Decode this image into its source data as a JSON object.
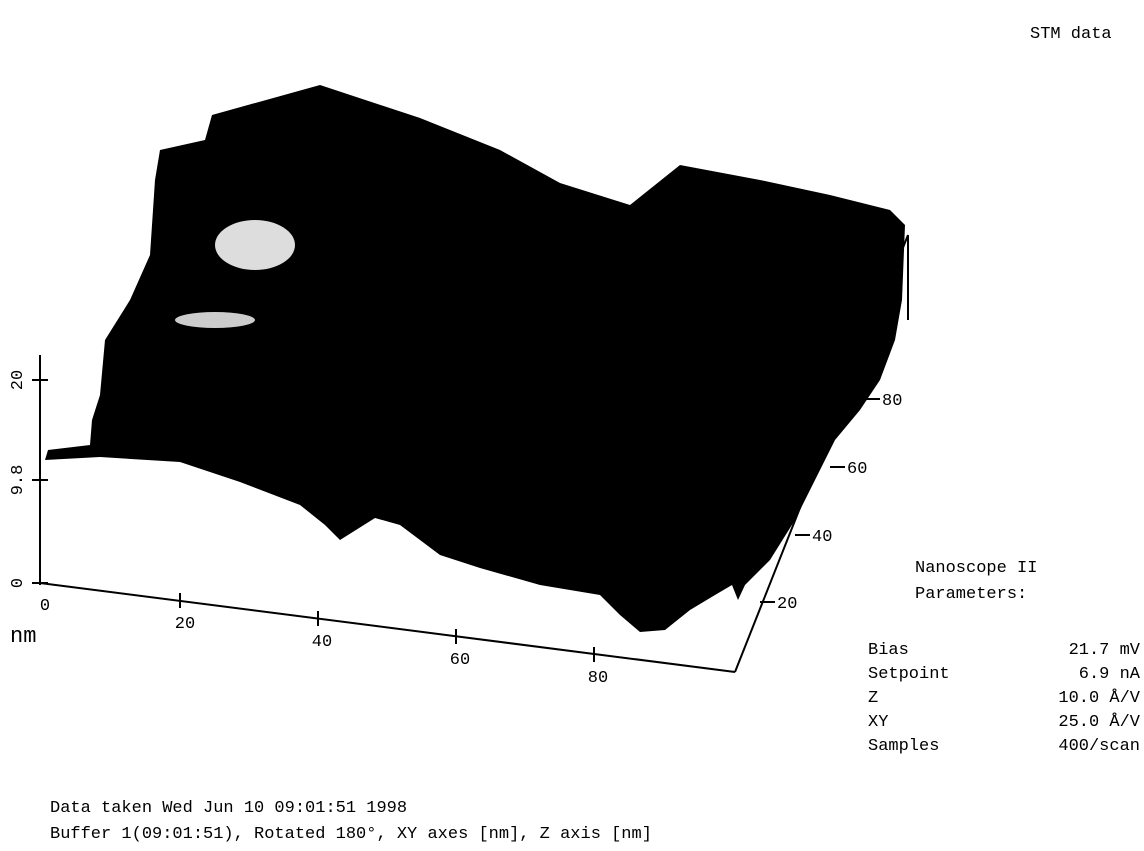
{
  "header": "STM data",
  "axes": {
    "z_ticks": [
      "20",
      "9.8",
      "0"
    ],
    "x_ticks": [
      "0",
      "20",
      "40",
      "60",
      "80"
    ],
    "x_unit": "nm",
    "y_ticks": [
      "20",
      "40",
      "60",
      "80"
    ]
  },
  "parameters": {
    "title": [
      "Nanoscope II",
      "Parameters:"
    ],
    "rows": [
      [
        "Bias",
        "21.7 mV"
      ],
      [
        "Setpoint",
        "6.9 nA"
      ],
      [
        "Z",
        "10.0 Å/V"
      ],
      [
        "XY",
        "25.0 Å/V"
      ],
      [
        "Samples",
        "400/scan"
      ]
    ]
  },
  "footer": [
    "Data taken Wed Jun 10 09:01:51 1998",
    "Buffer 1(09:01:51), Rotated 180°, XY axes [nm], Z axis [nm]"
  ]
}
